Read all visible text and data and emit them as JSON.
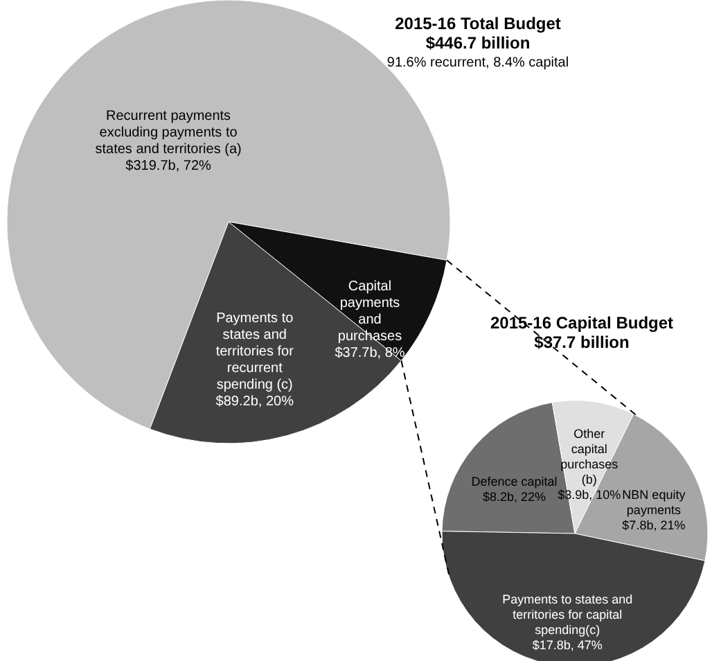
{
  "chart_data": [
    {
      "type": "pie",
      "title": "2015-16 Total Budget",
      "subtitle": "$446.7 billion",
      "annotations": [
        "91.6% recurrent, 8.4% capital"
      ],
      "categories": [
        "Recurrent payments excluding payments to states and territories (a)",
        "Payments to states and territories for recurrent spending (c)",
        "Capital payments and purchases"
      ],
      "values": [
        72,
        20,
        8
      ],
      "value_labels": [
        "$319.7b, 72%",
        "$89.2b, 20%",
        "$37.7b, 8%"
      ],
      "colors": [
        "#bfbfbf",
        "#404040",
        "#111111"
      ]
    },
    {
      "type": "pie",
      "title": "2015-16 Capital Budget",
      "subtitle": "$37.7 billion",
      "categories": [
        "Defence capital",
        "Other capital purchases (b)",
        "NBN equity payments",
        "Payments to states and territories for capital spending(c)"
      ],
      "values": [
        22,
        10,
        21,
        47
      ],
      "value_labels": [
        "$8.2b, 22%",
        "$3.9b, 10%",
        "$7.8b, 21%",
        "$17.8b, 47%"
      ],
      "colors": [
        "#6e6e6e",
        "#e0e0e0",
        "#a6a6a6",
        "#404040"
      ]
    }
  ]
}
